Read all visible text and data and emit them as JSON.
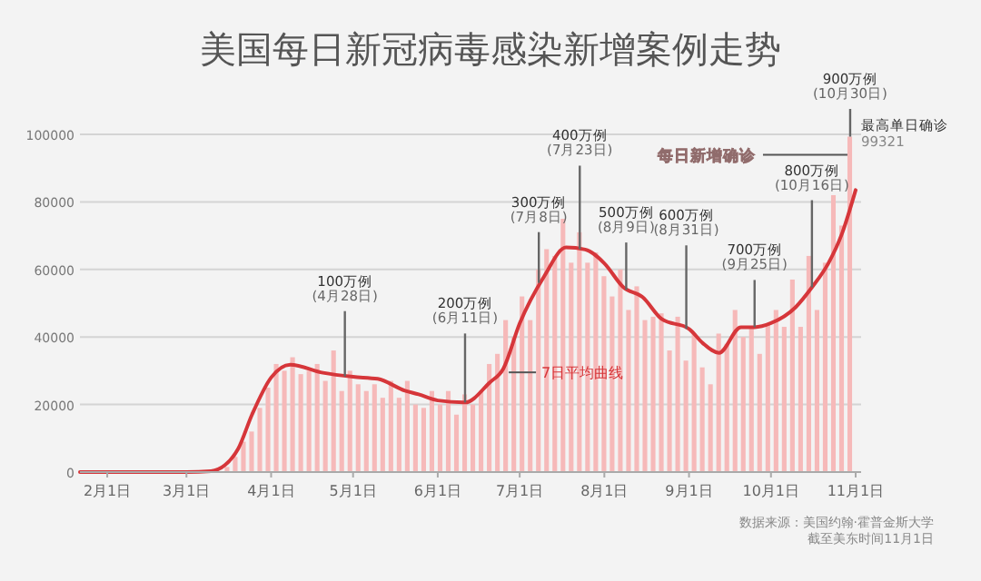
{
  "chart_data": {
    "type": "bar",
    "title": "美国每日新冠病毒感染新增案例走势",
    "xlim": [
      "--01-22",
      "--11-03"
    ],
    "xticks": [
      {
        "value": "--02-01",
        "label": "2月1日"
      },
      {
        "value": "--03-01",
        "label": "3月1日"
      },
      {
        "value": "--04-01",
        "label": "4月1日"
      },
      {
        "value": "--05-01",
        "label": "5月1日"
      },
      {
        "value": "--06-01",
        "label": "6月1日"
      },
      {
        "value": "--07-01",
        "label": "7月1日"
      },
      {
        "value": "--08-01",
        "label": "8月1日"
      },
      {
        "value": "--09-01",
        "label": "9月1日"
      },
      {
        "value": "--10-01",
        "label": "10月1日"
      },
      {
        "value": "--11-01",
        "label": "11月1日"
      }
    ],
    "ylim": [
      0,
      100000
    ],
    "yticks": [
      0,
      20000,
      40000,
      60000,
      80000,
      100000
    ],
    "grid": "y",
    "legend": false,
    "series": [
      {
        "name": "每日新增确诊",
        "color": "#f6b9b9",
        "x": [
          "--03-10",
          "--03-16",
          "--03-19",
          "--03-22",
          "--03-25",
          "--03-28",
          "--03-31",
          "--04-03",
          "--04-06",
          "--04-09",
          "--04-12",
          "--04-15",
          "--04-18",
          "--04-21",
          "--04-24",
          "--04-27",
          "--04-30",
          "--05-03",
          "--05-06",
          "--05-09",
          "--05-12",
          "--05-15",
          "--05-18",
          "--05-21",
          "--05-24",
          "--05-27",
          "--05-30",
          "--06-02",
          "--06-05",
          "--06-08",
          "--06-11",
          "--06-14",
          "--06-17",
          "--06-20",
          "--06-23",
          "--06-26",
          "--06-29",
          "--07-02",
          "--07-05",
          "--07-08",
          "--07-11",
          "--07-14",
          "--07-17",
          "--07-20",
          "--07-23",
          "--07-26",
          "--07-29",
          "--08-01",
          "--08-04",
          "--08-07",
          "--08-10",
          "--08-13",
          "--08-16",
          "--08-19",
          "--08-22",
          "--08-25",
          "--08-28",
          "--08-31",
          "--09-03",
          "--09-06",
          "--09-09",
          "--09-12",
          "--09-15",
          "--09-18",
          "--09-21",
          "--09-24",
          "--09-27",
          "--09-30",
          "--10-03",
          "--10-06",
          "--10-09",
          "--10-12",
          "--10-15",
          "--10-18",
          "--10-21",
          "--10-24",
          "--10-27",
          "--10-30"
        ],
        "values": [
          300,
          1500,
          4500,
          9000,
          12000,
          19000,
          25000,
          32000,
          30000,
          34000,
          29000,
          30000,
          32000,
          27000,
          36000,
          24000,
          30000,
          26000,
          24000,
          26000,
          22000,
          27000,
          22000,
          27000,
          20000,
          19000,
          24000,
          20000,
          24000,
          17000,
          23000,
          20000,
          24000,
          32000,
          35000,
          45000,
          40000,
          52000,
          45000,
          60000,
          66000,
          64000,
          75000,
          62000,
          71000,
          62000,
          65000,
          58000,
          52000,
          60000,
          48000,
          55000,
          45000,
          46000,
          47000,
          36000,
          46000,
          33000,
          41000,
          31000,
          26000,
          41000,
          38000,
          48000,
          40000,
          43000,
          35000,
          44000,
          48000,
          43000,
          57000,
          43000,
          64000,
          48000,
          62000,
          82000,
          73000,
          99321
        ]
      },
      {
        "name": "7日平均曲线",
        "type": "line",
        "color": "#d6363a",
        "x": [
          "--01-22",
          "--03-01",
          "--03-10",
          "--03-15",
          "--03-20",
          "--03-25",
          "--04-01",
          "--04-08",
          "--04-20",
          "--05-01",
          "--05-10",
          "--05-20",
          "--05-25",
          "--06-01",
          "--06-11",
          "--06-20",
          "--06-25",
          "--07-01",
          "--07-10",
          "--07-18",
          "--07-25",
          "--08-01",
          "--08-08",
          "--08-15",
          "--08-22",
          "--09-01",
          "--09-06",
          "--09-12",
          "--09-20",
          "--09-25",
          "--10-01",
          "--10-10",
          "--10-16",
          "--10-22",
          "--10-27",
          "--11-01"
        ],
        "values": [
          0,
          0,
          300,
          2000,
          7000,
          17000,
          28000,
          31800,
          29400,
          28200,
          27600,
          24100,
          23000,
          21200,
          20600,
          26500,
          30600,
          44000,
          58000,
          66500,
          65900,
          61800,
          54700,
          51800,
          45300,
          42400,
          38200,
          35300,
          42900,
          42900,
          44100,
          48800,
          54700,
          61800,
          70600,
          83500
        ]
      }
    ],
    "annotations": [
      {
        "text": "100万例\n(4月28日)",
        "x": "--04-28",
        "y": 28300
      },
      {
        "text": "200万例\n(6月11日)",
        "x": "--06-11",
        "y": 20600
      },
      {
        "text": "300万例\n(7月8日)",
        "x": "--07-08",
        "y": 56000
      },
      {
        "text": "400万例\n(7月23日)",
        "x": "--07-23",
        "y": 66000
      },
      {
        "text": "500万例\n(8月9日)",
        "x": "--08-09",
        "y": 54000
      },
      {
        "text": "600万例\n(8月31日)",
        "x": "--08-31",
        "y": 42400
      },
      {
        "text": "700万例\n(9月25日)",
        "x": "--09-25",
        "y": 42900
      },
      {
        "text": "800万例\n(10月16日)",
        "x": "--10-16",
        "y": 54700
      },
      {
        "text": "900万例\n(10月30日)",
        "x": "--10-30",
        "y": 99321
      },
      {
        "text": "最高单日确诊\n99321",
        "x": "--10-30",
        "y": 99321
      },
      "数据来源：美国约翰·霍普金斯大学",
      "截至美东时间11月1日"
    ]
  }
}
